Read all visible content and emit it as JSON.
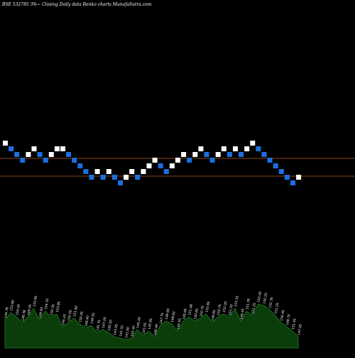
{
  "chart_data": {
    "type": "renko",
    "title": "BSE 532785 3%~  Closing Daily data  Renko  charts MunafaSutra.com",
    "colors": {
      "background": "#000000",
      "up_brick": "#ffffff",
      "down_brick": "#1c6fe0",
      "reference_line": "#8b4513",
      "volume_fill": "#0b3d0b",
      "volume_stroke": "#1f7a1f",
      "volume_label": "#ffffff"
    },
    "reference_levels": [
      149.0,
      144.0
    ],
    "bricks": [
      {
        "value": 153.4,
        "dir": "up"
      },
      {
        "value": 151.8,
        "dir": "down"
      },
      {
        "value": 150.2,
        "dir": "down"
      },
      {
        "value": 148.6,
        "dir": "down"
      },
      {
        "value": 150.2,
        "dir": "up"
      },
      {
        "value": 151.8,
        "dir": "up"
      },
      {
        "value": 150.2,
        "dir": "down"
      },
      {
        "value": 148.6,
        "dir": "down"
      },
      {
        "value": 150.2,
        "dir": "up"
      },
      {
        "value": 151.8,
        "dir": "up"
      },
      {
        "value": 151.8,
        "dir": "up"
      },
      {
        "value": 150.2,
        "dir": "down"
      },
      {
        "value": 148.6,
        "dir": "down"
      },
      {
        "value": 147.0,
        "dir": "down"
      },
      {
        "value": 145.4,
        "dir": "down"
      },
      {
        "value": 143.8,
        "dir": "down"
      },
      {
        "value": 145.4,
        "dir": "up"
      },
      {
        "value": 143.8,
        "dir": "down"
      },
      {
        "value": 145.4,
        "dir": "up"
      },
      {
        "value": 143.8,
        "dir": "down"
      },
      {
        "value": 142.2,
        "dir": "down"
      },
      {
        "value": 143.8,
        "dir": "up"
      },
      {
        "value": 145.4,
        "dir": "up"
      },
      {
        "value": 143.8,
        "dir": "down"
      },
      {
        "value": 145.4,
        "dir": "up"
      },
      {
        "value": 147.0,
        "dir": "up"
      },
      {
        "value": 148.6,
        "dir": "up"
      },
      {
        "value": 147.0,
        "dir": "down"
      },
      {
        "value": 145.4,
        "dir": "down"
      },
      {
        "value": 147.0,
        "dir": "up"
      },
      {
        "value": 148.6,
        "dir": "up"
      },
      {
        "value": 150.2,
        "dir": "up"
      },
      {
        "value": 148.6,
        "dir": "down"
      },
      {
        "value": 150.2,
        "dir": "up"
      },
      {
        "value": 151.8,
        "dir": "up"
      },
      {
        "value": 150.2,
        "dir": "down"
      },
      {
        "value": 148.6,
        "dir": "down"
      },
      {
        "value": 150.2,
        "dir": "up"
      },
      {
        "value": 151.8,
        "dir": "up"
      },
      {
        "value": 150.2,
        "dir": "down"
      },
      {
        "value": 151.8,
        "dir": "up"
      },
      {
        "value": 150.2,
        "dir": "down"
      },
      {
        "value": 151.8,
        "dir": "up"
      },
      {
        "value": 153.4,
        "dir": "up"
      },
      {
        "value": 151.8,
        "dir": "down"
      },
      {
        "value": 150.2,
        "dir": "down"
      },
      {
        "value": 148.6,
        "dir": "down"
      },
      {
        "value": 147.0,
        "dir": "down"
      },
      {
        "value": 145.4,
        "dir": "down"
      },
      {
        "value": 143.8,
        "dir": "down"
      },
      {
        "value": 142.2,
        "dir": "down"
      },
      {
        "value": 143.8,
        "dir": "up"
      }
    ],
    "volume_labels": [
      "144.76",
      "153.80",
      "150.00",
      "148.38",
      "149.55",
      "153.85",
      "149.83",
      "154.70",
      "150.35",
      "153.85",
      "145.20",
      "150.00",
      "151.60",
      "150.05",
      "148.40",
      "149.55",
      "145.75",
      "147.00",
      "145.50",
      "143.05",
      "142.70",
      "141.00",
      "142.40",
      "145.40",
      "143.05",
      "145.95",
      "140.49",
      "147.75",
      "149.90",
      "148.60",
      "144.50",
      "149.65",
      "151.48",
      "150.65",
      "150.75",
      "152.65",
      "149.65",
      "150.75",
      "152.00",
      "151.20",
      "153.25",
      "149.45",
      "151.76",
      "151.25",
      "150.45",
      "150.20",
      "152.35",
      "151.25",
      "150.45",
      "148.70",
      "151.45",
      "147.45"
    ],
    "volume_values": [
      20,
      25,
      22,
      18,
      22,
      28,
      20,
      26,
      22,
      24,
      15,
      18,
      21,
      17,
      14,
      16,
      11,
      13,
      11,
      8,
      7,
      6,
      7,
      13,
      9,
      12,
      8,
      16,
      19,
      17,
      12,
      19,
      22,
      19,
      21,
      24,
      18,
      22,
      24,
      22,
      28,
      19,
      26,
      23,
      31,
      30,
      27,
      23,
      18,
      15,
      12,
      8
    ]
  }
}
